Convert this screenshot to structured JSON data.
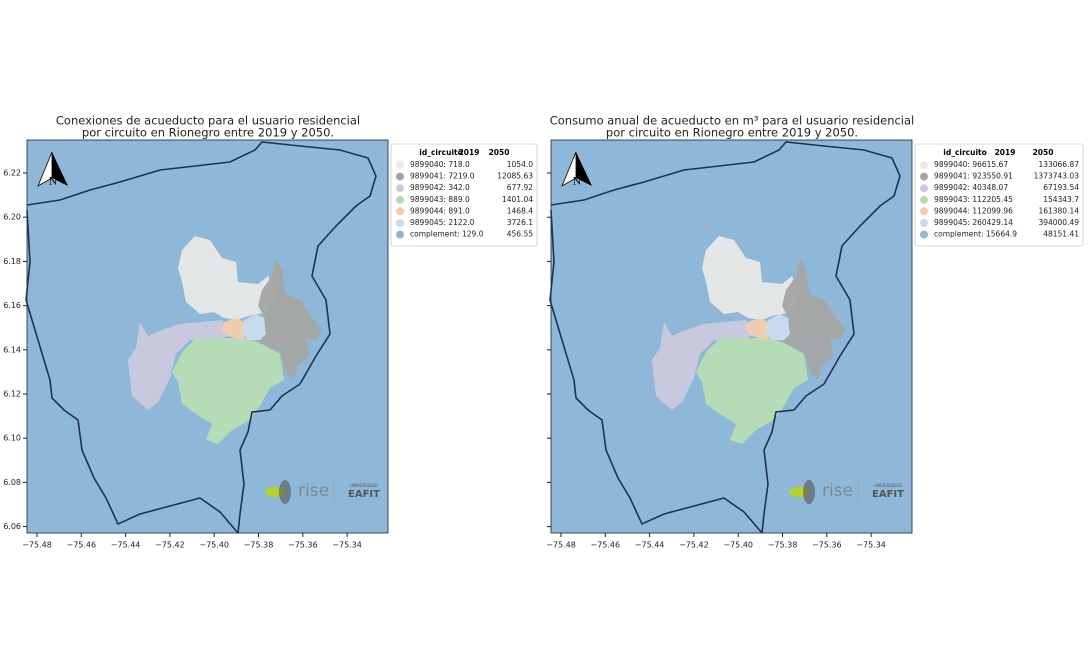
{
  "panels": [
    {
      "title": [
        "Conexiones de acueducto para el usuario residencial",
        "por circuito en Rionegro entre 2019 y 2050."
      ],
      "legend": {
        "header": [
          "id_circuito",
          "2019",
          "2050"
        ],
        "rows": [
          [
            "9899040: 718.0",
            "1054.0"
          ],
          [
            "9899041: 7219.0",
            "12085.63"
          ],
          [
            "9899042: 342.0",
            "677.92"
          ],
          [
            "9899043: 889.0",
            "1401.04"
          ],
          [
            "9899044: 891.0",
            "1468.4"
          ],
          [
            "9899045: 2122.0",
            "3726.1"
          ],
          [
            "complement: 129.0",
            "456.55"
          ]
        ]
      }
    },
    {
      "title": [
        "Consumo anual de acueducto en m³ para el usuario residencial",
        "por circuito en Rionegro entre 2019 y 2050."
      ],
      "legend": {
        "header": [
          "id_circuito",
          "2019",
          "2050"
        ],
        "rows": [
          [
            "9899040: 96615.67",
            "133066.87"
          ],
          [
            "9899041: 923550.91",
            "1373743.03"
          ],
          [
            "9899042: 40348.07",
            "67193.54"
          ],
          [
            "9899043: 112205.45",
            "154343.7"
          ],
          [
            "9899044: 112099.96",
            "161380.14"
          ],
          [
            "9899045: 260429.14",
            "394000.49"
          ],
          [
            "complement: 15664.9",
            "48151.41"
          ]
        ]
      }
    }
  ],
  "colors": [
    "#e8e8e8",
    "#a5a5a5",
    "#cbc8df",
    "#b7dcb5",
    "#f4cdae",
    "#cadcee",
    "#8fb8d8"
  ],
  "x_ticks": [
    "−75.48",
    "−75.46",
    "−75.44",
    "−75.42",
    "−75.40",
    "−75.38",
    "−75.36",
    "−75.34"
  ],
  "y_ticks": [
    "6.22",
    "6.20",
    "6.18",
    "6.16",
    "6.14",
    "6.12",
    "6.10",
    "6.08",
    "6.06"
  ],
  "north": "N",
  "logo": {
    "rise": "rise",
    "university": "UNIVERSIDAD",
    "eafit": "EAFIT"
  }
}
